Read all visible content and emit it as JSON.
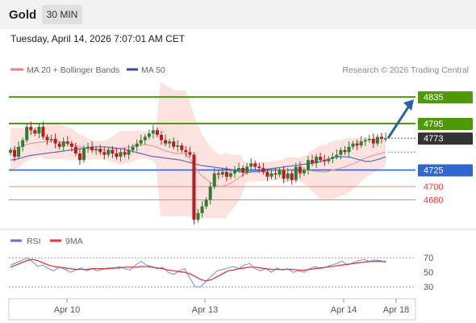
{
  "header": {
    "title": "Gold",
    "timeframe_label": "30 MIN"
  },
  "timestamp": "Tuesday, April 14, 2026 7:07:01 AM CET",
  "legend": {
    "ma20": "MA 20 + Bollinger Bands",
    "ma50": "MA 50",
    "copyright": "Research © 2026 Trading Central",
    "rsi": "RSI",
    "rsi_ma": "9MA"
  },
  "colors": {
    "resistance": "#4e9a06",
    "support": "#3366cc",
    "minor_support": "#f08080",
    "current": "#333333",
    "candle_up": "#2e7d32",
    "candle_down": "#b71c1c",
    "band_fill": "#fde0dc",
    "ma20": "#ef9a9a",
    "ma50": "#5c6bc0",
    "rsi": "#6f8fd8",
    "rsi_ma": "#e53935",
    "arrow": "#2b5fa8"
  },
  "chart_data": [
    {
      "type": "candlestick",
      "title": "Gold",
      "interval": "30 MIN",
      "ylim": [
        4638,
        4862
      ],
      "x_ticks": [
        "Apr 10",
        "Apr 13",
        "Apr 14",
        "Apr 18"
      ],
      "levels": [
        {
          "value": 4835,
          "label": "4835",
          "kind": "resistance"
        },
        {
          "value": 4795,
          "label": "4795",
          "kind": "resistance"
        },
        {
          "value": 4773,
          "label": "4773",
          "kind": "current"
        },
        {
          "value": 4725,
          "label": "4725",
          "kind": "support"
        },
        {
          "value": 4700,
          "label": "4700",
          "kind": "minor_support"
        },
        {
          "value": 4680,
          "label": "4680",
          "kind": "minor_support"
        }
      ],
      "close": [
        4755,
        4745,
        4760,
        4770,
        4790,
        4785,
        4780,
        4790,
        4775,
        4770,
        4772,
        4765,
        4760,
        4768,
        4765,
        4760,
        4750,
        4740,
        4758,
        4760,
        4755,
        4757,
        4752,
        4748,
        4755,
        4750,
        4745,
        4752,
        4748,
        4755,
        4760,
        4765,
        4770,
        4775,
        4780,
        4785,
        4778,
        4770,
        4765,
        4768,
        4760,
        4762,
        4755,
        4752,
        4748,
        4650,
        4660,
        4670,
        4680,
        4700,
        4720,
        4718,
        4722,
        4715,
        4720,
        4725,
        4728,
        4722,
        4730,
        4735,
        4730,
        4728,
        4722,
        4715,
        4720,
        4718,
        4725,
        4712,
        4720,
        4710,
        4730,
        4720,
        4725,
        4740,
        4735,
        4745,
        4740,
        4738,
        4742,
        4745,
        4748,
        4755,
        4752,
        4760,
        4765,
        4762,
        4768,
        4770,
        4772,
        4765,
        4775,
        4772,
        4773
      ],
      "ma20": [
        4755,
        4757,
        4760,
        4763,
        4765,
        4766,
        4767,
        4768,
        4768,
        4768,
        4767,
        4766,
        4764,
        4762,
        4760,
        4758,
        4756,
        4755,
        4755,
        4755,
        4756,
        4757,
        4758,
        4759,
        4760,
        4762,
        4763,
        4763,
        4762,
        4760,
        4757,
        4754,
        4752,
        4750,
        4750,
        4750,
        4740,
        4728,
        4718,
        4712,
        4706,
        4702,
        4700,
        4702,
        4705,
        4710,
        4715,
        4720,
        4722,
        4722,
        4722,
        4723,
        4724,
        4724,
        4725,
        4725,
        4726,
        4726,
        4726,
        4725,
        4724,
        4723,
        4722,
        4722,
        4724,
        4726,
        4728,
        4730,
        4733,
        4736,
        4740,
        4743,
        4746,
        4748,
        4750,
        4752
      ],
      "ma50": [
        4740,
        4741,
        4743,
        4745,
        4747,
        4748,
        4749,
        4750,
        4751,
        4752,
        4753,
        4754,
        4755,
        4756,
        4757,
        4758,
        4759,
        4760,
        4760,
        4760,
        4759,
        4758,
        4757,
        4756,
        4754,
        4752,
        4750,
        4748,
        4746,
        4745,
        4744,
        4743,
        4742,
        4741,
        4740,
        4738,
        4736,
        4734,
        4732,
        4731,
        4730,
        4729,
        4728,
        4727,
        4726,
        4724,
        4722,
        4721,
        4722,
        4723,
        4724,
        4726,
        4727,
        4728,
        4729,
        4730,
        4731,
        4732,
        4733,
        4734,
        4735,
        4736,
        4738,
        4740,
        4742,
        4744,
        4745,
        4745,
        4744,
        4742,
        4740,
        4738,
        4738,
        4740,
        4742,
        4745
      ]
    },
    {
      "type": "line",
      "title": "RSI",
      "ylim": [
        18,
        78
      ],
      "y_ticks": [
        70,
        50,
        30
      ],
      "series": [
        {
          "name": "RSI",
          "values": [
            60,
            63,
            66,
            70,
            65,
            58,
            60,
            55,
            52,
            57,
            54,
            50,
            53,
            56,
            52,
            55,
            52,
            54,
            56,
            55,
            58,
            55,
            53,
            60,
            65,
            60,
            58,
            55,
            57,
            50,
            47,
            52,
            55,
            42,
            30,
            30,
            38,
            45,
            52,
            54,
            56,
            58,
            55,
            60,
            62,
            55,
            52,
            55,
            50,
            56,
            53,
            55,
            50,
            52,
            50,
            55,
            58,
            55,
            57,
            60,
            62,
            65,
            60,
            63,
            66,
            68,
            65,
            67,
            66,
            64
          ]
        },
        {
          "name": "9MA",
          "values": [
            57,
            60,
            63,
            66,
            68,
            66,
            63,
            60,
            58,
            57,
            56,
            55,
            54,
            54,
            54,
            55,
            55,
            55,
            55,
            56,
            56,
            57,
            57,
            57,
            58,
            58,
            57,
            56,
            55,
            53,
            52,
            51,
            50,
            48,
            44,
            40,
            38,
            40,
            44,
            48,
            52,
            53,
            55,
            56,
            57,
            57,
            56,
            55,
            54,
            54,
            54,
            54,
            54,
            53,
            53,
            54,
            55,
            56,
            57,
            58,
            59,
            60,
            61,
            62,
            63,
            64,
            65,
            65,
            65,
            65
          ]
        }
      ]
    }
  ]
}
